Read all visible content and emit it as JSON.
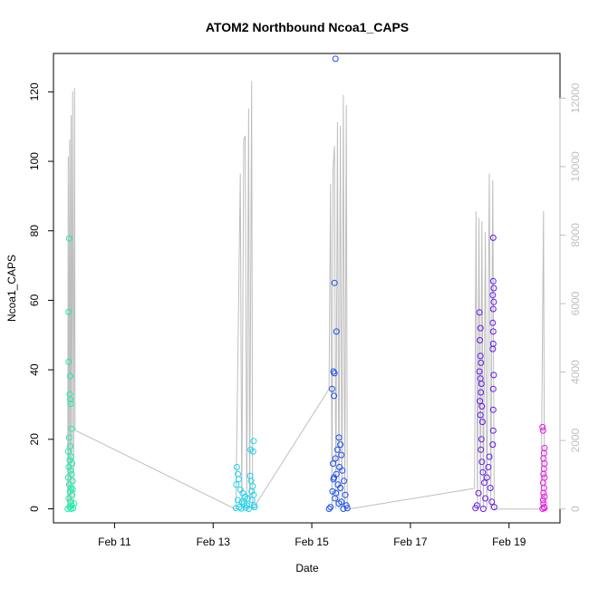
{
  "chart_data": {
    "type": "scatter",
    "title": "ATOM2 Northbound Ncoa1_CAPS",
    "xlabel": "Date",
    "ylabel": "Ncoa1_CAPS",
    "x_tick_labels": [
      "Feb 11",
      "Feb 13",
      "Feb 15",
      "Feb 17",
      "Feb 19"
    ],
    "x_tick_days": [
      11,
      13,
      15,
      17,
      19
    ],
    "xlim_days": [
      10.0,
      19.85
    ],
    "ylim": [
      -3,
      130
    ],
    "y_ticks": [
      0,
      20,
      40,
      60,
      80,
      100,
      120
    ],
    "y2_ticks": [
      0,
      2000,
      4000,
      6000,
      8000,
      10000,
      12000
    ],
    "y2lim": [
      -300,
      13200
    ],
    "grid": false,
    "series": [
      {
        "color": "#19f0aa",
        "x_range_days": [
          10.05,
          10.2
        ],
        "points": [
          {
            "x": 10.08,
            "y": 77.8
          },
          {
            "x": 10.07,
            "y": 56.7
          },
          {
            "x": 10.07,
            "y": 42.3
          },
          {
            "x": 10.1,
            "y": 38.2
          },
          {
            "x": 10.09,
            "y": 33.0
          },
          {
            "x": 10.1,
            "y": 31.5
          },
          {
            "x": 10.11,
            "y": 30.2
          },
          {
            "x": 10.13,
            "y": 23.0
          },
          {
            "x": 10.08,
            "y": 20.5
          },
          {
            "x": 10.1,
            "y": 18.0
          },
          {
            "x": 10.06,
            "y": 16.5
          },
          {
            "x": 10.12,
            "y": 15.0
          },
          {
            "x": 10.09,
            "y": 14.0
          },
          {
            "x": 10.14,
            "y": 13.0
          },
          {
            "x": 10.07,
            "y": 12.0
          },
          {
            "x": 10.11,
            "y": 11.0
          },
          {
            "x": 10.13,
            "y": 10.0
          },
          {
            "x": 10.06,
            "y": 9.0
          },
          {
            "x": 10.15,
            "y": 8.0
          },
          {
            "x": 10.08,
            "y": 7.0
          },
          {
            "x": 10.12,
            "y": 6.0
          },
          {
            "x": 10.1,
            "y": 5.0
          },
          {
            "x": 10.14,
            "y": 4.0
          },
          {
            "x": 10.07,
            "y": 3.0
          },
          {
            "x": 10.11,
            "y": 2.0
          },
          {
            "x": 10.13,
            "y": 1.0
          },
          {
            "x": 10.09,
            "y": 0.5
          },
          {
            "x": 10.16,
            "y": 0.2
          },
          {
            "x": 10.05,
            "y": 0.0
          },
          {
            "x": 10.12,
            "y": 0.0
          },
          {
            "x": 10.18,
            "y": 1.5
          },
          {
            "x": 10.15,
            "y": 5.5
          }
        ]
      },
      {
        "color": "#1ad2f0",
        "x_range_days": [
          13.45,
          13.85
        ],
        "points": [
          {
            "x": 13.48,
            "y": 12.0
          },
          {
            "x": 13.5,
            "y": 10.0
          },
          {
            "x": 13.52,
            "y": 8.5
          },
          {
            "x": 13.47,
            "y": 7.0
          },
          {
            "x": 13.55,
            "y": 5.5
          },
          {
            "x": 13.6,
            "y": 4.5
          },
          {
            "x": 13.65,
            "y": 3.5
          },
          {
            "x": 13.7,
            "y": 3.0
          },
          {
            "x": 13.5,
            "y": 2.5
          },
          {
            "x": 13.58,
            "y": 2.0
          },
          {
            "x": 13.62,
            "y": 1.5
          },
          {
            "x": 13.68,
            "y": 1.0
          },
          {
            "x": 13.53,
            "y": 0.5
          },
          {
            "x": 13.46,
            "y": 0.2
          },
          {
            "x": 13.72,
            "y": 0.0
          },
          {
            "x": 13.75,
            "y": 9.5
          },
          {
            "x": 13.77,
            "y": 8.0
          },
          {
            "x": 13.8,
            "y": 6.5
          },
          {
            "x": 13.78,
            "y": 5.0
          },
          {
            "x": 13.82,
            "y": 4.0
          },
          {
            "x": 13.79,
            "y": 2.5
          },
          {
            "x": 13.83,
            "y": 1.0
          },
          {
            "x": 13.76,
            "y": 17.0
          },
          {
            "x": 13.82,
            "y": 19.5
          },
          {
            "x": 13.81,
            "y": 16.5
          },
          {
            "x": 13.84,
            "y": 0.5
          },
          {
            "x": 13.66,
            "y": 0.3
          },
          {
            "x": 13.57,
            "y": 0.1
          }
        ]
      },
      {
        "color": "#1a50f0",
        "x_range_days": [
          15.3,
          15.75
        ],
        "points": [
          {
            "x": 15.48,
            "y": 129.5
          },
          {
            "x": 15.46,
            "y": 65.0
          },
          {
            "x": 15.5,
            "y": 51.0
          },
          {
            "x": 15.44,
            "y": 39.5
          },
          {
            "x": 15.46,
            "y": 39.0
          },
          {
            "x": 15.41,
            "y": 34.5
          },
          {
            "x": 15.45,
            "y": 32.5
          },
          {
            "x": 15.55,
            "y": 20.5
          },
          {
            "x": 15.58,
            "y": 18.5
          },
          {
            "x": 15.52,
            "y": 17.0
          },
          {
            "x": 15.6,
            "y": 15.5
          },
          {
            "x": 15.48,
            "y": 14.5
          },
          {
            "x": 15.43,
            "y": 13.0
          },
          {
            "x": 15.56,
            "y": 12.0
          },
          {
            "x": 15.62,
            "y": 11.0
          },
          {
            "x": 15.5,
            "y": 10.0
          },
          {
            "x": 15.45,
            "y": 9.0
          },
          {
            "x": 15.65,
            "y": 8.0
          },
          {
            "x": 15.53,
            "y": 7.0
          },
          {
            "x": 15.58,
            "y": 6.0
          },
          {
            "x": 15.42,
            "y": 5.0
          },
          {
            "x": 15.68,
            "y": 4.0
          },
          {
            "x": 15.47,
            "y": 3.0
          },
          {
            "x": 15.6,
            "y": 2.0
          },
          {
            "x": 15.7,
            "y": 1.0
          },
          {
            "x": 15.38,
            "y": 0.5
          },
          {
            "x": 15.72,
            "y": 0.2
          },
          {
            "x": 15.35,
            "y": 0.0
          },
          {
            "x": 15.64,
            "y": 0.0
          },
          {
            "x": 15.55,
            "y": 1.5
          },
          {
            "x": 15.49,
            "y": 4.5
          },
          {
            "x": 15.44,
            "y": 8.5
          }
        ]
      },
      {
        "color": "#6419f0",
        "x_range_days": [
          18.3,
          18.75
        ],
        "points": [
          {
            "x": 18.68,
            "y": 78.0
          },
          {
            "x": 18.68,
            "y": 65.5
          },
          {
            "x": 18.69,
            "y": 63.5
          },
          {
            "x": 18.67,
            "y": 61.5
          },
          {
            "x": 18.69,
            "y": 59.5
          },
          {
            "x": 18.68,
            "y": 57.5
          },
          {
            "x": 18.4,
            "y": 56.5
          },
          {
            "x": 18.67,
            "y": 53.5
          },
          {
            "x": 18.42,
            "y": 52.0
          },
          {
            "x": 18.68,
            "y": 51.0
          },
          {
            "x": 18.41,
            "y": 48.5
          },
          {
            "x": 18.68,
            "y": 47.5
          },
          {
            "x": 18.67,
            "y": 46.0
          },
          {
            "x": 18.42,
            "y": 44.0
          },
          {
            "x": 18.43,
            "y": 42.0
          },
          {
            "x": 18.4,
            "y": 39.5
          },
          {
            "x": 18.69,
            "y": 38.5
          },
          {
            "x": 18.42,
            "y": 37.5
          },
          {
            "x": 18.44,
            "y": 36.0
          },
          {
            "x": 18.68,
            "y": 34.5
          },
          {
            "x": 18.43,
            "y": 33.5
          },
          {
            "x": 18.41,
            "y": 31.0
          },
          {
            "x": 18.45,
            "y": 29.5
          },
          {
            "x": 18.68,
            "y": 28.5
          },
          {
            "x": 18.42,
            "y": 27.0
          },
          {
            "x": 18.46,
            "y": 25.0
          },
          {
            "x": 18.68,
            "y": 22.5
          },
          {
            "x": 18.44,
            "y": 20.0
          },
          {
            "x": 18.67,
            "y": 18.5
          },
          {
            "x": 18.43,
            "y": 17.0
          },
          {
            "x": 18.6,
            "y": 15.0
          },
          {
            "x": 18.45,
            "y": 13.5
          },
          {
            "x": 18.58,
            "y": 12.0
          },
          {
            "x": 18.47,
            "y": 10.5
          },
          {
            "x": 18.55,
            "y": 9.0
          },
          {
            "x": 18.5,
            "y": 7.5
          },
          {
            "x": 18.62,
            "y": 6.0
          },
          {
            "x": 18.38,
            "y": 4.5
          },
          {
            "x": 18.52,
            "y": 3.0
          },
          {
            "x": 18.65,
            "y": 2.0
          },
          {
            "x": 18.35,
            "y": 1.0
          },
          {
            "x": 18.7,
            "y": 0.5
          },
          {
            "x": 18.48,
            "y": 0.0
          },
          {
            "x": 18.32,
            "y": 0.2
          }
        ]
      },
      {
        "color": "#e619e6",
        "x_range_days": [
          19.65,
          19.75
        ],
        "points": [
          {
            "x": 19.68,
            "y": 23.5
          },
          {
            "x": 19.69,
            "y": 22.5
          },
          {
            "x": 19.72,
            "y": 17.5
          },
          {
            "x": 19.71,
            "y": 16.0
          },
          {
            "x": 19.7,
            "y": 14.5
          },
          {
            "x": 19.72,
            "y": 13.0
          },
          {
            "x": 19.71,
            "y": 11.5
          },
          {
            "x": 19.7,
            "y": 10.0
          },
          {
            "x": 19.72,
            "y": 9.0
          },
          {
            "x": 19.69,
            "y": 7.5
          },
          {
            "x": 19.71,
            "y": 6.0
          },
          {
            "x": 19.7,
            "y": 4.5
          },
          {
            "x": 19.72,
            "y": 3.5
          },
          {
            "x": 19.69,
            "y": 2.5
          },
          {
            "x": 19.7,
            "y": 1.5
          },
          {
            "x": 19.71,
            "y": 0.5
          },
          {
            "x": 19.68,
            "y": 0.0
          },
          {
            "x": 19.72,
            "y": 0.2
          }
        ]
      }
    ],
    "secondary_line": {
      "color": "#bebebe",
      "points": [
        {
          "x": 10.05,
          "y2": 0
        },
        {
          "x": 10.06,
          "y2": 10300
        },
        {
          "x": 10.07,
          "y2": 0
        },
        {
          "x": 10.09,
          "y2": 10800
        },
        {
          "x": 10.1,
          "y2": 0
        },
        {
          "x": 10.12,
          "y2": 11500
        },
        {
          "x": 10.13,
          "y2": 0
        },
        {
          "x": 10.15,
          "y2": 12200
        },
        {
          "x": 10.17,
          "y2": 0
        },
        {
          "x": 10.19,
          "y2": 12300
        },
        {
          "x": 10.2,
          "y2": 2300
        },
        {
          "x": 13.45,
          "y2": 0
        },
        {
          "x": 13.46,
          "y2": 0
        },
        {
          "x": 13.55,
          "y2": 9800
        },
        {
          "x": 13.58,
          "y2": 0
        },
        {
          "x": 13.62,
          "y2": 10800
        },
        {
          "x": 13.65,
          "y2": 10900
        },
        {
          "x": 13.68,
          "y2": 0
        },
        {
          "x": 13.72,
          "y2": 11700
        },
        {
          "x": 13.74,
          "y2": 0
        },
        {
          "x": 13.78,
          "y2": 12500
        },
        {
          "x": 13.8,
          "y2": 0
        },
        {
          "x": 13.85,
          "y2": 100
        },
        {
          "x": 15.35,
          "y2": 3500
        },
        {
          "x": 15.38,
          "y2": 9500
        },
        {
          "x": 15.41,
          "y2": 0
        },
        {
          "x": 15.43,
          "y2": 9900
        },
        {
          "x": 15.46,
          "y2": 10600
        },
        {
          "x": 15.49,
          "y2": 0
        },
        {
          "x": 15.52,
          "y2": 11300
        },
        {
          "x": 15.55,
          "y2": 0
        },
        {
          "x": 15.58,
          "y2": 11200
        },
        {
          "x": 15.61,
          "y2": 0
        },
        {
          "x": 15.64,
          "y2": 12100
        },
        {
          "x": 15.67,
          "y2": 0
        },
        {
          "x": 15.7,
          "y2": 11800
        },
        {
          "x": 15.72,
          "y2": 0
        },
        {
          "x": 15.75,
          "y2": 0
        },
        {
          "x": 18.3,
          "y2": 600
        },
        {
          "x": 18.33,
          "y2": 8700
        },
        {
          "x": 18.36,
          "y2": 0
        },
        {
          "x": 18.39,
          "y2": 8500
        },
        {
          "x": 18.42,
          "y2": 0
        },
        {
          "x": 18.45,
          "y2": 8400
        },
        {
          "x": 18.48,
          "y2": 0
        },
        {
          "x": 18.52,
          "y2": 8100
        },
        {
          "x": 18.55,
          "y2": 0
        },
        {
          "x": 18.6,
          "y2": 9800
        },
        {
          "x": 18.63,
          "y2": 0
        },
        {
          "x": 18.67,
          "y2": 9600
        },
        {
          "x": 18.7,
          "y2": 0
        },
        {
          "x": 18.75,
          "y2": 0
        },
        {
          "x": 19.65,
          "y2": 0
        },
        {
          "x": 19.7,
          "y2": 8700
        },
        {
          "x": 19.72,
          "y2": 0
        },
        {
          "x": 19.75,
          "y2": 0
        }
      ]
    }
  }
}
